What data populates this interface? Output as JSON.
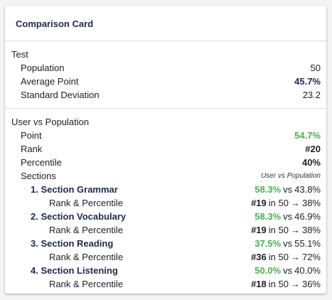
{
  "card": {
    "title": "Comparison Card"
  },
  "test": {
    "label": "Test",
    "population_label": "Population",
    "population_value": "50",
    "avg_label": "Average Point",
    "avg_value": "45.7%",
    "sd_label": "Standard Deviation",
    "sd_value": "23.2"
  },
  "user": {
    "label": "User vs Population",
    "point_label": "Point",
    "point_value": "54.7%",
    "rank_label": "Rank",
    "rank_value": "#20",
    "percentile_label": "Percentile",
    "percentile_value": "40%",
    "sections_label": "Sections",
    "sections_hint": "User vs Population",
    "sections": [
      {
        "name": "1. Section Grammar",
        "user": "58.3%",
        "vs": "vs",
        "pop": "43.8%",
        "rp_label": "Rank & Percentile",
        "rank": "#19",
        "in": "in 50",
        "arrow": "→",
        "pct": "38%"
      },
      {
        "name": "2. Section Vocabulary",
        "user": "58.3%",
        "vs": "vs",
        "pop": "46.9%",
        "rp_label": "Rank & Percentile",
        "rank": "#19",
        "in": "in 50",
        "arrow": "→",
        "pct": "38%"
      },
      {
        "name": "3. Section Reading",
        "user": "37.5%",
        "vs": "vs",
        "pop": "55.1%",
        "rp_label": "Rank & Percentile",
        "rank": "#36",
        "in": "in 50",
        "arrow": "→",
        "pct": "72%"
      },
      {
        "name": "4. Section Listening",
        "user": "50.0%",
        "vs": "vs",
        "pop": "40.0%",
        "rp_label": "Rank & Percentile",
        "rank": "#18",
        "in": "in 50",
        "arrow": "→",
        "pct": "36%"
      }
    ]
  }
}
